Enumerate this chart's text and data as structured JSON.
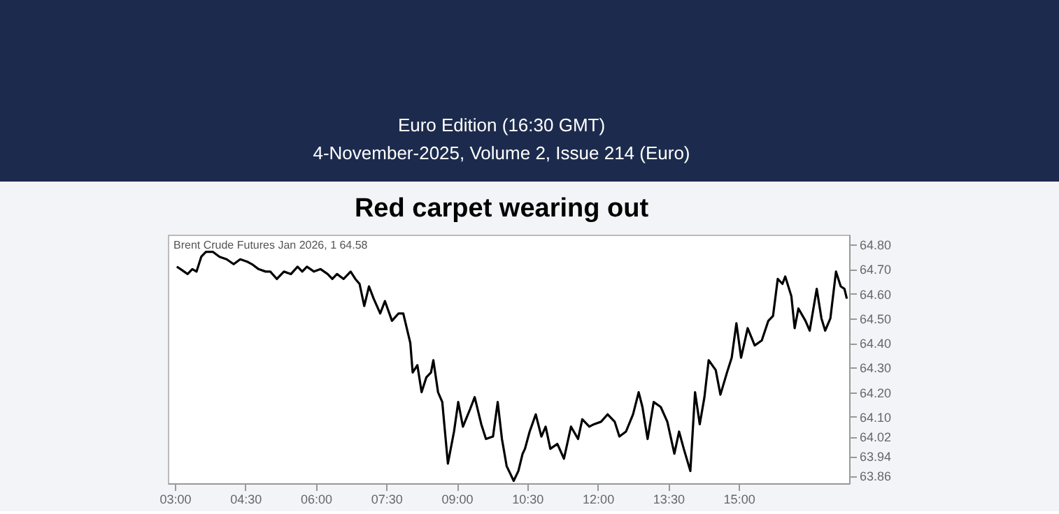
{
  "chart_data": {
    "type": "line",
    "title": "Red carpet wearing out",
    "annotations": [
      "Euro Edition (16:30 GMT)",
      "4-November-2025, Volume 2, Issue 214 (Euro)",
      "Brent Crude Futures Jan 2026, 1  64.58"
    ],
    "x": [
      3.04,
      3.12,
      3.27,
      3.37,
      3.46,
      3.56,
      3.66,
      3.81,
      3.95,
      4.1,
      4.25,
      4.39,
      4.54,
      4.64,
      4.78,
      4.93,
      5.03,
      5.17,
      5.32,
      5.47,
      5.61,
      5.71,
      5.81,
      5.96,
      6.1,
      6.25,
      6.35,
      6.45,
      6.59,
      6.74,
      6.84,
      6.93,
      7.03,
      7.13,
      7.23,
      7.37,
      7.47,
      7.62,
      7.76,
      7.86,
      8.01,
      8.06,
      8.16,
      8.25,
      8.35,
      8.45,
      8.5,
      8.6,
      8.69,
      8.81,
      8.94,
      9.03,
      9.13,
      9.28,
      9.38,
      9.52,
      9.62,
      9.77,
      9.87,
      9.96,
      10.06,
      10.21,
      10.31,
      10.4,
      10.45,
      10.55,
      10.68,
      10.8,
      10.89,
      10.99,
      11.14,
      11.28,
      11.43,
      11.58,
      11.67,
      11.82,
      11.92,
      12.07,
      12.21,
      12.36,
      12.46,
      12.6,
      12.75,
      12.87,
      12.95,
      13.06,
      13.19,
      13.34,
      13.48,
      13.63,
      13.73,
      13.83,
      13.97,
      14.07,
      14.17,
      14.27,
      14.36,
      14.51,
      14.61,
      14.75,
      14.85,
      14.95,
      15.05,
      15.19,
      15.34,
      15.49,
      15.63,
      15.73,
      15.83,
      15.93,
      15.99,
      16.12,
      16.19,
      16.27,
      16.42,
      16.51,
      16.66,
      16.76,
      16.84,
      16.95,
      17.07,
      17.17,
      17.25,
      17.3
    ],
    "series": [
      {
        "color": "#000000",
        "values": [
          64.71,
          64.7,
          64.68,
          64.7,
          64.69,
          64.75,
          64.77,
          64.77,
          64.75,
          64.74,
          64.72,
          64.74,
          64.73,
          64.72,
          64.7,
          64.69,
          64.69,
          64.66,
          64.69,
          64.68,
          64.71,
          64.69,
          64.71,
          64.69,
          64.7,
          64.68,
          64.66,
          64.68,
          64.66,
          64.69,
          64.66,
          64.64,
          64.55,
          64.63,
          64.58,
          64.52,
          64.57,
          64.49,
          64.52,
          64.52,
          64.4,
          64.28,
          64.31,
          64.2,
          64.26,
          64.28,
          64.33,
          64.2,
          64.16,
          63.91,
          64.04,
          64.16,
          64.06,
          64.13,
          64.18,
          64.07,
          64.01,
          64.02,
          64.16,
          64.01,
          63.9,
          63.84,
          63.88,
          63.95,
          63.97,
          64.04,
          64.11,
          64.02,
          64.06,
          63.97,
          63.99,
          63.93,
          64.06,
          64.01,
          64.09,
          64.06,
          64.07,
          64.08,
          64.11,
          64.08,
          64.02,
          64.04,
          64.11,
          64.2,
          64.14,
          64.01,
          64.16,
          64.14,
          64.08,
          63.95,
          64.04,
          63.97,
          63.88,
          64.2,
          64.07,
          64.18,
          64.33,
          64.29,
          64.19,
          64.28,
          64.34,
          64.48,
          64.34,
          64.46,
          64.39,
          64.41,
          64.49,
          64.51,
          64.66,
          64.64,
          64.67,
          64.59,
          64.46,
          64.54,
          64.49,
          64.45,
          64.62,
          64.5,
          64.45,
          64.5,
          64.69,
          64.63,
          64.62,
          64.58
        ]
      }
    ],
    "xlim": [
      2.85,
      17.35
    ],
    "ylim": [
      63.83,
      64.84
    ],
    "xticks": [
      {
        "value": 3,
        "label": "03:00"
      },
      {
        "value": 4.5,
        "label": "04:30"
      },
      {
        "value": 6,
        "label": "06:00"
      },
      {
        "value": 7.5,
        "label": "07:30"
      },
      {
        "value": 9,
        "label": "09:00"
      },
      {
        "value": 10.5,
        "label": "10:30"
      },
      {
        "value": 12,
        "label": "12:00"
      },
      {
        "value": 13.5,
        "label": "13:30"
      },
      {
        "value": 15,
        "label": "15:00"
      }
    ],
    "yticks": [
      {
        "value": 64.8,
        "label": "64.80"
      },
      {
        "value": 64.7,
        "label": "64.70"
      },
      {
        "value": 64.6,
        "label": "64.60"
      },
      {
        "value": 64.5,
        "label": "64.50"
      },
      {
        "value": 64.4,
        "label": "64.40"
      },
      {
        "value": 64.3,
        "label": "64.30"
      },
      {
        "value": 64.2,
        "label": "64.20"
      },
      {
        "value": 64.1,
        "label": "64.10"
      },
      64.02,
      63.94,
      63.86
    ],
    "grid": false,
    "line_style": "solid"
  }
}
